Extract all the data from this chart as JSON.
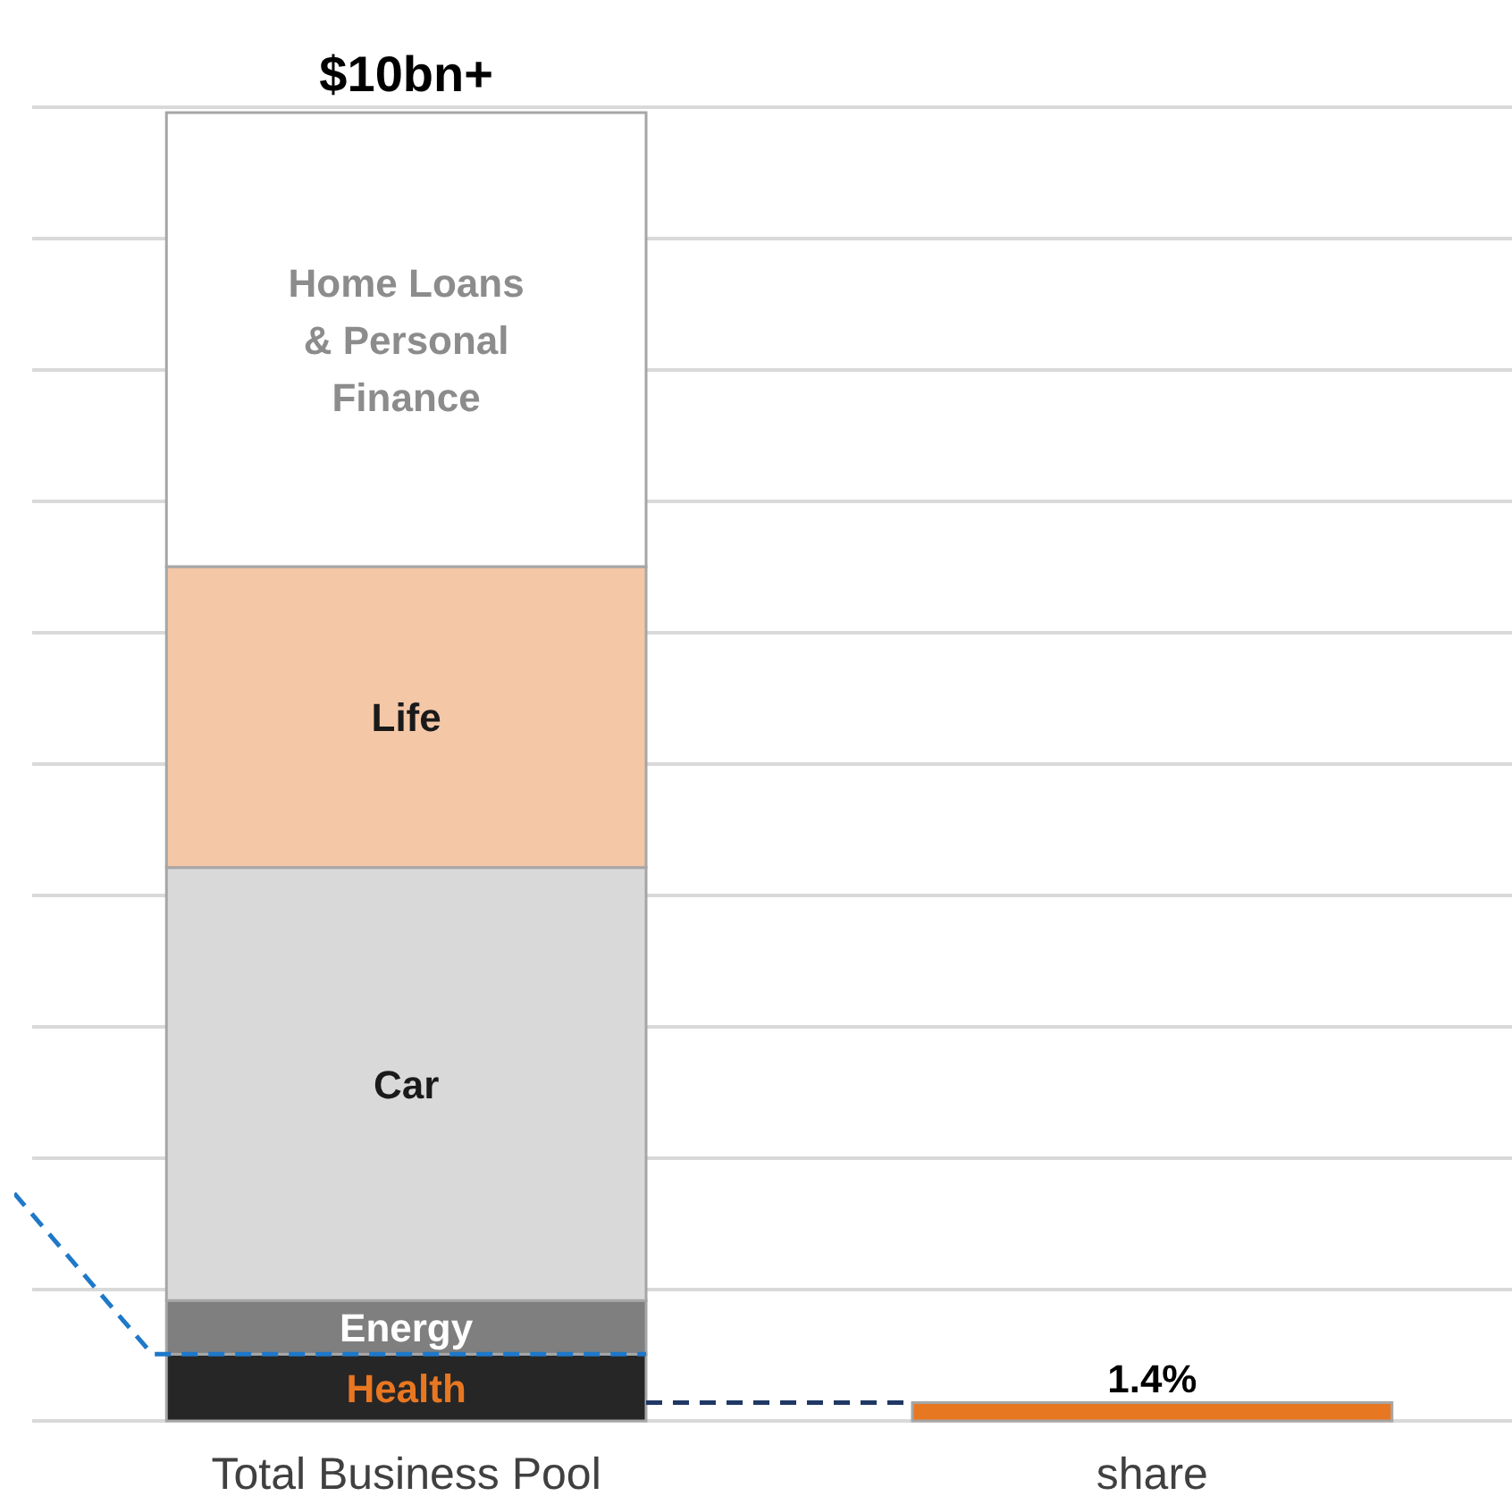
{
  "chart_data": {
    "type": "bar",
    "stacked": true,
    "grid": "y",
    "legend": false,
    "categories": [
      "Total Business Pool",
      "share"
    ],
    "series": [
      {
        "name": "Health",
        "color": "#262626",
        "values": [
          5.1,
          null
        ]
      },
      {
        "name": "Energy",
        "color": "#7f7f7f",
        "values": [
          4.1,
          null
        ]
      },
      {
        "name": "Car",
        "color": "#d9d9d9",
        "values": [
          33.1,
          null
        ]
      },
      {
        "name": "Life",
        "color": "#f4c7a6",
        "values": [
          23.0,
          null
        ]
      },
      {
        "name": "Home Loans & Personal Finance",
        "color": "#ffffff",
        "values": [
          34.7,
          null
        ]
      },
      {
        "color": "#e87722",
        "values": [
          null,
          1.4
        ],
        "value_labels": [
          null,
          "1.4%"
        ]
      }
    ],
    "ref_lines": [
      {
        "axis": "y",
        "value": 5.1,
        "color": "#1f78c8",
        "line_style": "dashed"
      },
      {
        "axis": "y",
        "value": 1.4,
        "color": "#1f3864",
        "line_style": "dashed"
      }
    ],
    "annotations": [
      {
        "text": "$10bn+",
        "x": "Total Business Pool",
        "y": 100
      }
    ]
  }
}
